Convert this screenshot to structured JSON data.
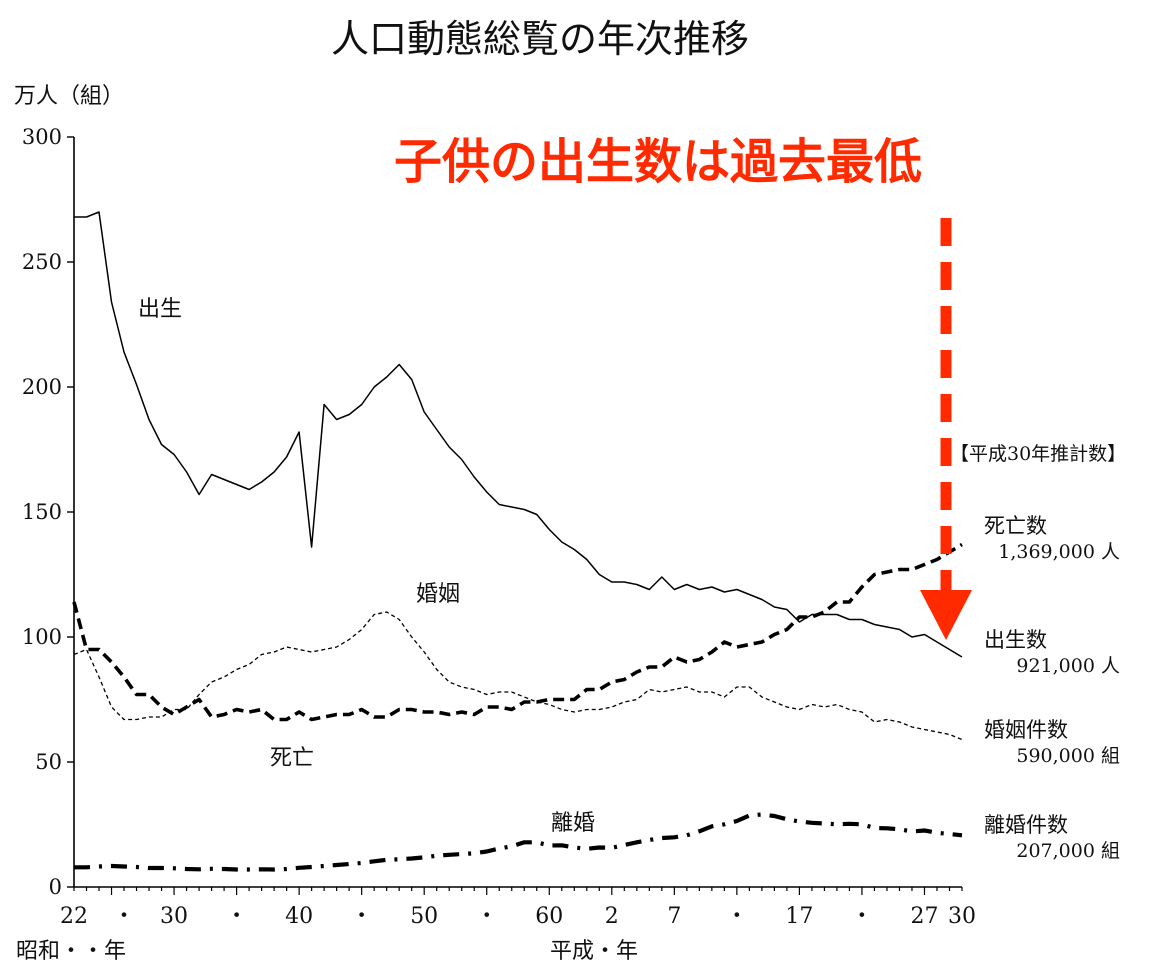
{
  "chart_data": {
    "type": "line",
    "title": "人口動態総覧の年次推移",
    "subtitle": "子供の出生数は過去最低",
    "ylabel": "万人（組）",
    "ylim": [
      0,
      300
    ],
    "yticks": [
      0,
      50,
      100,
      150,
      200,
      250,
      300
    ],
    "xlim": [
      1947,
      2018
    ],
    "xticks": [
      {
        "year": 1947,
        "label": "22"
      },
      {
        "year": 1951,
        "label": "・"
      },
      {
        "year": 1955,
        "label": "30"
      },
      {
        "year": 1960,
        "label": "・"
      },
      {
        "year": 1965,
        "label": "40"
      },
      {
        "year": 1970,
        "label": "・"
      },
      {
        "year": 1975,
        "label": "50"
      },
      {
        "year": 1980,
        "label": "・"
      },
      {
        "year": 1985,
        "label": "60"
      },
      {
        "year": 1990,
        "label": "2"
      },
      {
        "year": 1995,
        "label": "7"
      },
      {
        "year": 2000,
        "label": "・"
      },
      {
        "year": 2005,
        "label": "17"
      },
      {
        "year": 2010,
        "label": "・"
      },
      {
        "year": 2015,
        "label": "27"
      },
      {
        "year": 2018,
        "label": "30"
      }
    ],
    "xlabel_showa": "昭和・・年",
    "xlabel_heisei": "平成・年",
    "estimate_header": "【平成30年推計数】",
    "series": [
      {
        "name": "出生",
        "legend_name": "出生数",
        "estimate": "921,000 人",
        "style": "solid",
        "x": [
          1947,
          1948,
          1949,
          1950,
          1951,
          1952,
          1953,
          1954,
          1955,
          1956,
          1957,
          1958,
          1959,
          1960,
          1961,
          1962,
          1963,
          1964,
          1965,
          1966,
          1967,
          1968,
          1969,
          1970,
          1971,
          1972,
          1973,
          1974,
          1975,
          1976,
          1977,
          1978,
          1979,
          1980,
          1981,
          1982,
          1983,
          1984,
          1985,
          1986,
          1987,
          1988,
          1989,
          1990,
          1991,
          1992,
          1993,
          1994,
          1995,
          1996,
          1997,
          1998,
          1999,
          2000,
          2001,
          2002,
          2003,
          2004,
          2005,
          2006,
          2007,
          2008,
          2009,
          2010,
          2011,
          2012,
          2013,
          2014,
          2015,
          2016,
          2017,
          2018
        ],
        "y": [
          268,
          268,
          270,
          234,
          214,
          201,
          187,
          177,
          173,
          166,
          157,
          165,
          163,
          161,
          159,
          162,
          166,
          172,
          182,
          136,
          193,
          187,
          189,
          193,
          200,
          204,
          209,
          203,
          190,
          183,
          176,
          171,
          164,
          158,
          153,
          152,
          151,
          149,
          143,
          138,
          135,
          131,
          125,
          122,
          122,
          121,
          119,
          124,
          119,
          121,
          119,
          120,
          118,
          119,
          117,
          115,
          112,
          111,
          106,
          109,
          109,
          109,
          107,
          107,
          105,
          104,
          103,
          100,
          101,
          98,
          95,
          92
        ]
      },
      {
        "name": "死亡",
        "legend_name": "死亡数",
        "estimate": "1,369,000 人",
        "style": "dashed-thick",
        "x": [
          1947,
          1948,
          1949,
          1950,
          1951,
          1952,
          1953,
          1954,
          1955,
          1956,
          1957,
          1958,
          1959,
          1960,
          1961,
          1962,
          1963,
          1964,
          1965,
          1966,
          1967,
          1968,
          1969,
          1970,
          1971,
          1972,
          1973,
          1974,
          1975,
          1976,
          1977,
          1978,
          1979,
          1980,
          1981,
          1982,
          1983,
          1984,
          1985,
          1986,
          1987,
          1988,
          1989,
          1990,
          1991,
          1992,
          1993,
          1994,
          1995,
          1996,
          1997,
          1998,
          1999,
          2000,
          2001,
          2002,
          2003,
          2004,
          2005,
          2006,
          2007,
          2008,
          2009,
          2010,
          2011,
          2012,
          2013,
          2014,
          2015,
          2016,
          2017,
          2018
        ],
        "y": [
          114,
          95,
          95,
          90,
          84,
          77,
          77,
          72,
          69,
          72,
          75,
          68,
          69,
          71,
          70,
          71,
          67,
          67,
          70,
          67,
          68,
          69,
          69,
          71,
          68,
          68,
          71,
          71,
          70,
          70,
          69,
          70,
          69,
          72,
          72,
          71,
          74,
          74,
          75,
          75,
          75,
          79,
          79,
          82,
          83,
          86,
          88,
          88,
          92,
          90,
          91,
          94,
          98,
          96,
          97,
          98,
          101,
          103,
          108,
          108,
          110,
          114,
          114,
          120,
          125,
          126,
          127,
          127,
          129,
          131,
          134,
          137
        ]
      },
      {
        "name": "婚姻",
        "legend_name": "婚姻件数",
        "estimate": "590,000 組",
        "style": "dotted-thin",
        "x": [
          1947,
          1948,
          1949,
          1950,
          1951,
          1952,
          1953,
          1954,
          1955,
          1956,
          1957,
          1958,
          1959,
          1960,
          1961,
          1962,
          1963,
          1964,
          1965,
          1966,
          1967,
          1968,
          1969,
          1970,
          1971,
          1972,
          1973,
          1974,
          1975,
          1976,
          1977,
          1978,
          1979,
          1980,
          1981,
          1982,
          1983,
          1984,
          1985,
          1986,
          1987,
          1988,
          1989,
          1990,
          1991,
          1992,
          1993,
          1994,
          1995,
          1996,
          1997,
          1998,
          1999,
          2000,
          2001,
          2002,
          2003,
          2004,
          2005,
          2006,
          2007,
          2008,
          2009,
          2010,
          2011,
          2012,
          2013,
          2014,
          2015,
          2016,
          2017,
          2018
        ],
        "y": [
          93,
          95,
          84,
          72,
          67,
          67,
          68,
          68,
          71,
          71,
          77,
          82,
          84,
          87,
          89,
          93,
          94,
          96,
          95,
          94,
          95,
          96,
          99,
          103,
          109,
          110,
          107,
          100,
          94,
          87,
          82,
          80,
          79,
          77,
          78,
          78,
          76,
          74,
          73,
          71,
          70,
          71,
          71,
          72,
          74,
          75,
          79,
          78,
          79,
          80,
          78,
          78,
          76,
          80,
          80,
          76,
          74,
          72,
          71,
          73,
          72,
          73,
          71,
          70,
          66,
          67,
          66,
          64,
          63,
          62,
          61,
          59
        ]
      },
      {
        "name": "離婚",
        "legend_name": "離婚件数",
        "estimate": "207,000 組",
        "style": "dashdot-thick",
        "x": [
          1947,
          1948,
          1949,
          1950,
          1951,
          1952,
          1953,
          1954,
          1955,
          1956,
          1957,
          1958,
          1959,
          1960,
          1961,
          1962,
          1963,
          1964,
          1965,
          1966,
          1967,
          1968,
          1969,
          1970,
          1971,
          1972,
          1973,
          1974,
          1975,
          1976,
          1977,
          1978,
          1979,
          1980,
          1981,
          1982,
          1983,
          1984,
          1985,
          1986,
          1987,
          1988,
          1989,
          1990,
          1991,
          1992,
          1993,
          1994,
          1995,
          1996,
          1997,
          1998,
          1999,
          2000,
          2001,
          2002,
          2003,
          2004,
          2005,
          2006,
          2007,
          2008,
          2009,
          2010,
          2011,
          2012,
          2013,
          2014,
          2015,
          2016,
          2017,
          2018
        ],
        "y": [
          7.9,
          7.9,
          8.2,
          8.4,
          8.2,
          8.0,
          7.6,
          7.6,
          7.5,
          7.2,
          7.1,
          7.3,
          7.2,
          7.0,
          7.0,
          7.1,
          7.0,
          7.2,
          7.7,
          8.0,
          8.4,
          8.8,
          9.2,
          9.6,
          10.3,
          10.9,
          11.1,
          11.4,
          11.9,
          12.5,
          12.9,
          13.2,
          13.5,
          14.2,
          15.4,
          16.3,
          17.9,
          17.9,
          16.6,
          16.7,
          15.8,
          15.3,
          15.8,
          15.7,
          16.8,
          17.9,
          18.8,
          19.6,
          19.9,
          20.7,
          22.3,
          24.3,
          25.1,
          26.4,
          28.6,
          29.0,
          28.4,
          27.1,
          26.2,
          25.7,
          25.4,
          25.1,
          25.3,
          25.1,
          23.6,
          23.5,
          23.1,
          22.2,
          22.6,
          21.7,
          21.2,
          20.7
        ]
      }
    ],
    "colors": {
      "accent": "#ff2a00",
      "line": "#000000",
      "text": "#111111"
    }
  }
}
